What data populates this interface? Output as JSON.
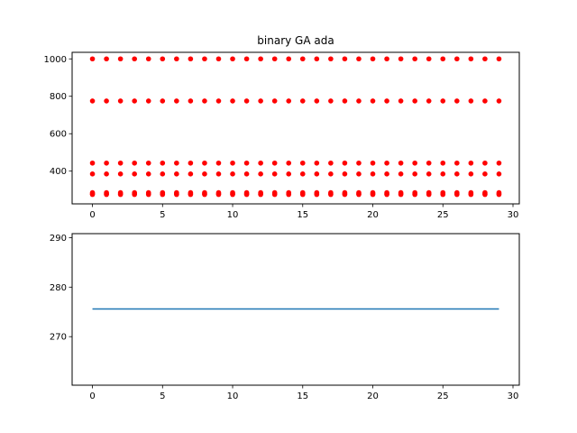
{
  "chart_data": [
    {
      "type": "scatter",
      "title": "binary GA ada",
      "xlabel": "",
      "ylabel": "",
      "xlim": [
        -1.45,
        30.45
      ],
      "ylim": [
        225,
        1035
      ],
      "xticks": [
        0,
        5,
        10,
        15,
        20,
        25,
        30
      ],
      "yticks": [
        400,
        600,
        800,
        1000
      ],
      "marker_color": "#ff0000",
      "grid": false,
      "x": [
        0,
        1,
        2,
        3,
        4,
        5,
        6,
        7,
        8,
        9,
        10,
        11,
        12,
        13,
        14,
        15,
        16,
        17,
        18,
        19,
        20,
        21,
        22,
        23,
        24,
        25,
        26,
        27,
        28,
        29
      ],
      "levels": [
        1000,
        775,
        443,
        385,
        285,
        279,
        275
      ],
      "points_per_generation": [
        {
          "y": 1000
        },
        {
          "y": 775
        },
        {
          "y": 443
        },
        {
          "y": 385
        },
        {
          "y": 285
        },
        {
          "y": 279
        },
        {
          "y": 275
        }
      ]
    },
    {
      "type": "line",
      "title": "",
      "xlabel": "",
      "ylabel": "",
      "xlim": [
        -1.45,
        30.45
      ],
      "ylim": [
        260.2,
        290.8
      ],
      "xticks": [
        0,
        5,
        10,
        15,
        20,
        25,
        30
      ],
      "yticks": [
        270,
        280,
        290
      ],
      "line_color": "#1f77b4",
      "grid": false,
      "x": [
        0,
        1,
        2,
        3,
        4,
        5,
        6,
        7,
        8,
        9,
        10,
        11,
        12,
        13,
        14,
        15,
        16,
        17,
        18,
        19,
        20,
        21,
        22,
        23,
        24,
        25,
        26,
        27,
        28,
        29
      ],
      "values": [
        275.6,
        275.6,
        275.6,
        275.6,
        275.6,
        275.6,
        275.6,
        275.6,
        275.6,
        275.6,
        275.6,
        275.6,
        275.6,
        275.6,
        275.6,
        275.6,
        275.6,
        275.6,
        275.6,
        275.6,
        275.6,
        275.6,
        275.6,
        275.6,
        275.6,
        275.6,
        275.6,
        275.6,
        275.6,
        275.6
      ]
    }
  ]
}
